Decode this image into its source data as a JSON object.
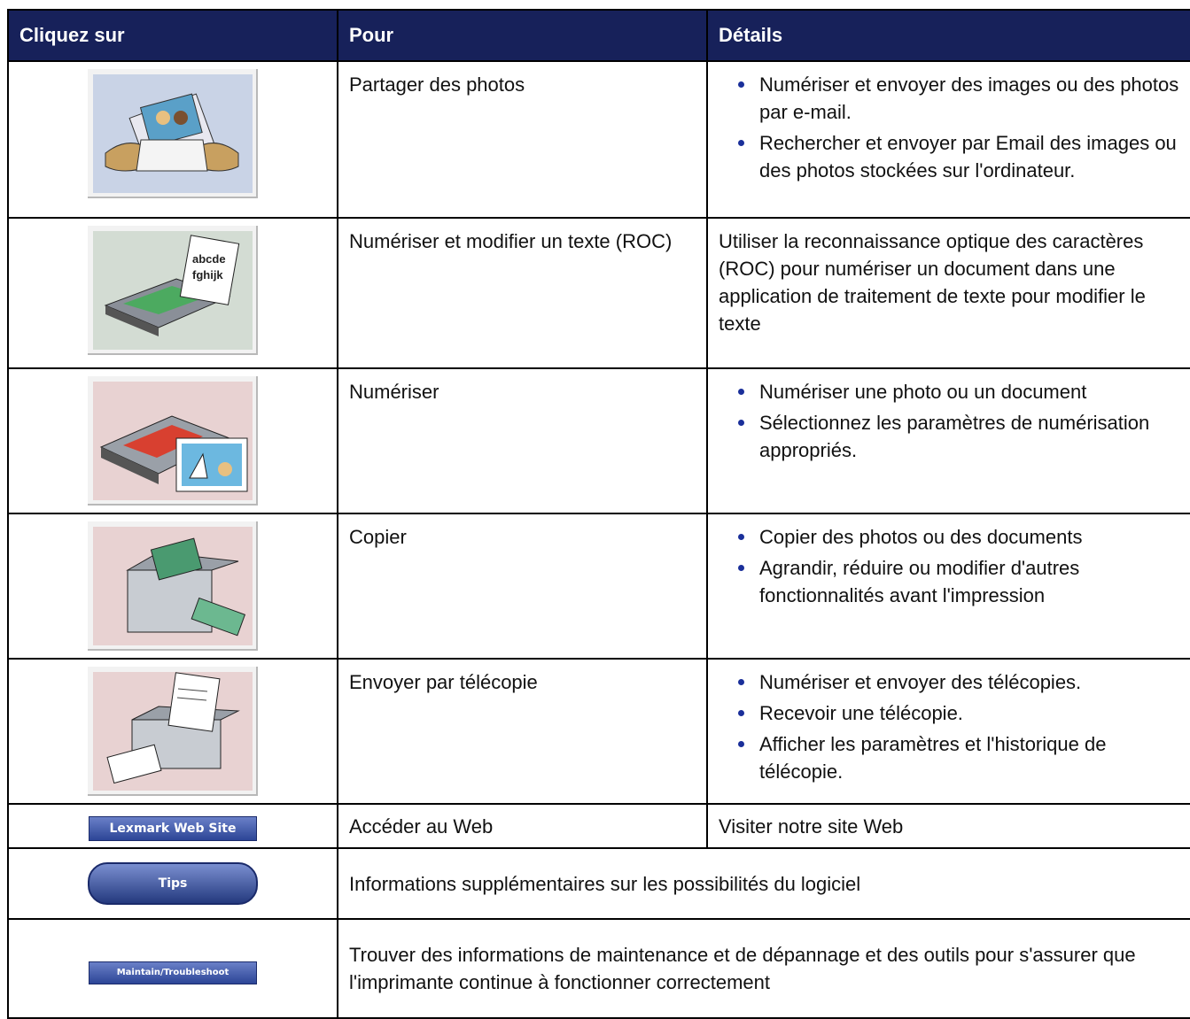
{
  "table": {
    "header": [
      "Cliquez sur",
      "Pour",
      "Détails"
    ],
    "rows": [
      {
        "action": "Partager des photos",
        "bullets": [
          "Numériser et envoyer des images ou des photos par e-mail.",
          "Rechercher et envoyer par Email des images ou des photos stockées sur l'ordinateur."
        ]
      },
      {
        "action": "Numériser et modifier un texte (ROC)",
        "details": "Utiliser la reconnaissance optique des caractères (ROC) pour numériser un document dans une application de traitement de texte pour modifier le texte"
      },
      {
        "action": "Numériser",
        "bullets": [
          "Numériser une photo ou un document",
          "Sélectionnez les paramètres de numérisation appropriés."
        ]
      },
      {
        "action": "Copier",
        "bullets": [
          "Copier des photos ou des documents",
          "Agrandir, réduire ou modifier d'autres fonctionnalités avant l'impression"
        ]
      },
      {
        "action": "Envoyer par télécopie",
        "bullets": [
          "Numériser et envoyer des télécopies.",
          "Recevoir une télécopie.",
          "Afficher les paramètres et l'historique de télécopie."
        ]
      },
      {
        "button": "Lexmark Web Site",
        "action": "Accéder au Web",
        "details": "Visiter notre site Web"
      },
      {
        "button": "Tips",
        "description": "Informations supplémentaires sur les possibilités du logiciel"
      },
      {
        "button": "Maintain/Troubleshoot",
        "description": "Trouver des informations de maintenance et de dépannage et des outils pour s'assurer que l'imprimante continue à fonctionner correctement"
      }
    ]
  }
}
